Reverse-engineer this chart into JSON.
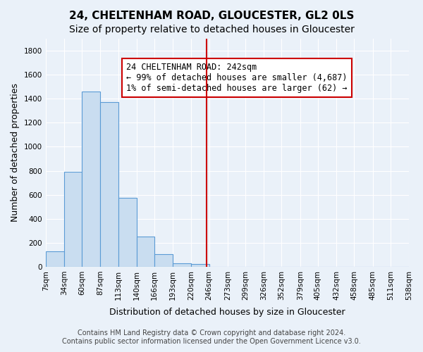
{
  "title": "24, CHELTENHAM ROAD, GLOUCESTER, GL2 0LS",
  "subtitle": "Size of property relative to detached houses in Gloucester",
  "xlabel": "Distribution of detached houses by size in Gloucester",
  "ylabel": "Number of detached properties",
  "bar_edges": [
    7,
    34,
    60,
    87,
    113,
    140,
    166,
    193,
    220,
    246,
    273,
    299,
    326,
    352,
    379,
    405,
    432,
    458,
    485,
    511,
    538
  ],
  "bar_heights": [
    130,
    790,
    1460,
    1370,
    575,
    250,
    107,
    30,
    20,
    0,
    0,
    0,
    0,
    0,
    0,
    0,
    0,
    0,
    0,
    0
  ],
  "bar_color": "#c9ddf0",
  "bar_edge_color": "#5b9bd5",
  "property_size": 242,
  "vline_color": "#cc0000",
  "annotation_text": "24 CHELTENHAM ROAD: 242sqm\n← 99% of detached houses are smaller (4,687)\n1% of semi-detached houses are larger (62) →",
  "annotation_box_edgecolor": "#cc0000",
  "background_color": "#eaf1f9",
  "ylim": [
    0,
    1900
  ],
  "yticks": [
    0,
    200,
    400,
    600,
    800,
    1000,
    1200,
    1400,
    1600,
    1800
  ],
  "footer_line1": "Contains HM Land Registry data © Crown copyright and database right 2024.",
  "footer_line2": "Contains public sector information licensed under the Open Government Licence v3.0.",
  "title_fontsize": 11,
  "subtitle_fontsize": 10,
  "xlabel_fontsize": 9,
  "ylabel_fontsize": 9,
  "tick_fontsize": 7.5,
  "footer_fontsize": 7,
  "annotation_fontsize": 8.5
}
